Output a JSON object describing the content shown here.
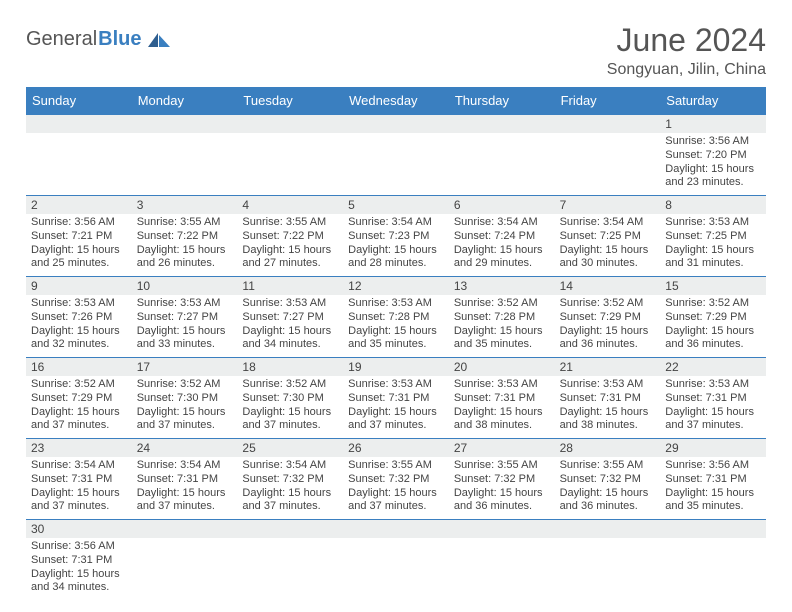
{
  "brand": {
    "a": "General",
    "b": "Blue"
  },
  "title": "June 2024",
  "location": "Songyuan, Jilin, China",
  "colors": {
    "header_bg": "#3a7fc0",
    "header_text": "#ffffff",
    "daynum_bg": "#eceeee",
    "rule": "#3a7fc0",
    "text": "#444444",
    "page_bg": "#ffffff"
  },
  "day_names": [
    "Sunday",
    "Monday",
    "Tuesday",
    "Wednesday",
    "Thursday",
    "Friday",
    "Saturday"
  ],
  "weeks": [
    {
      "nums": [
        "",
        "",
        "",
        "",
        "",
        "",
        "1"
      ],
      "cells": [
        null,
        null,
        null,
        null,
        null,
        null,
        {
          "sunrise": "3:56 AM",
          "sunset": "7:20 PM",
          "daylight": "15 hours and 23 minutes."
        }
      ]
    },
    {
      "nums": [
        "2",
        "3",
        "4",
        "5",
        "6",
        "7",
        "8"
      ],
      "cells": [
        {
          "sunrise": "3:56 AM",
          "sunset": "7:21 PM",
          "daylight": "15 hours and 25 minutes."
        },
        {
          "sunrise": "3:55 AM",
          "sunset": "7:22 PM",
          "daylight": "15 hours and 26 minutes."
        },
        {
          "sunrise": "3:55 AM",
          "sunset": "7:22 PM",
          "daylight": "15 hours and 27 minutes."
        },
        {
          "sunrise": "3:54 AM",
          "sunset": "7:23 PM",
          "daylight": "15 hours and 28 minutes."
        },
        {
          "sunrise": "3:54 AM",
          "sunset": "7:24 PM",
          "daylight": "15 hours and 29 minutes."
        },
        {
          "sunrise": "3:54 AM",
          "sunset": "7:25 PM",
          "daylight": "15 hours and 30 minutes."
        },
        {
          "sunrise": "3:53 AM",
          "sunset": "7:25 PM",
          "daylight": "15 hours and 31 minutes."
        }
      ]
    },
    {
      "nums": [
        "9",
        "10",
        "11",
        "12",
        "13",
        "14",
        "15"
      ],
      "cells": [
        {
          "sunrise": "3:53 AM",
          "sunset": "7:26 PM",
          "daylight": "15 hours and 32 minutes."
        },
        {
          "sunrise": "3:53 AM",
          "sunset": "7:27 PM",
          "daylight": "15 hours and 33 minutes."
        },
        {
          "sunrise": "3:53 AM",
          "sunset": "7:27 PM",
          "daylight": "15 hours and 34 minutes."
        },
        {
          "sunrise": "3:53 AM",
          "sunset": "7:28 PM",
          "daylight": "15 hours and 35 minutes."
        },
        {
          "sunrise": "3:52 AM",
          "sunset": "7:28 PM",
          "daylight": "15 hours and 35 minutes."
        },
        {
          "sunrise": "3:52 AM",
          "sunset": "7:29 PM",
          "daylight": "15 hours and 36 minutes."
        },
        {
          "sunrise": "3:52 AM",
          "sunset": "7:29 PM",
          "daylight": "15 hours and 36 minutes."
        }
      ]
    },
    {
      "nums": [
        "16",
        "17",
        "18",
        "19",
        "20",
        "21",
        "22"
      ],
      "cells": [
        {
          "sunrise": "3:52 AM",
          "sunset": "7:29 PM",
          "daylight": "15 hours and 37 minutes."
        },
        {
          "sunrise": "3:52 AM",
          "sunset": "7:30 PM",
          "daylight": "15 hours and 37 minutes."
        },
        {
          "sunrise": "3:52 AM",
          "sunset": "7:30 PM",
          "daylight": "15 hours and 37 minutes."
        },
        {
          "sunrise": "3:53 AM",
          "sunset": "7:31 PM",
          "daylight": "15 hours and 37 minutes."
        },
        {
          "sunrise": "3:53 AM",
          "sunset": "7:31 PM",
          "daylight": "15 hours and 38 minutes."
        },
        {
          "sunrise": "3:53 AM",
          "sunset": "7:31 PM",
          "daylight": "15 hours and 38 minutes."
        },
        {
          "sunrise": "3:53 AM",
          "sunset": "7:31 PM",
          "daylight": "15 hours and 37 minutes."
        }
      ]
    },
    {
      "nums": [
        "23",
        "24",
        "25",
        "26",
        "27",
        "28",
        "29"
      ],
      "cells": [
        {
          "sunrise": "3:54 AM",
          "sunset": "7:31 PM",
          "daylight": "15 hours and 37 minutes."
        },
        {
          "sunrise": "3:54 AM",
          "sunset": "7:31 PM",
          "daylight": "15 hours and 37 minutes."
        },
        {
          "sunrise": "3:54 AM",
          "sunset": "7:32 PM",
          "daylight": "15 hours and 37 minutes."
        },
        {
          "sunrise": "3:55 AM",
          "sunset": "7:32 PM",
          "daylight": "15 hours and 37 minutes."
        },
        {
          "sunrise": "3:55 AM",
          "sunset": "7:32 PM",
          "daylight": "15 hours and 36 minutes."
        },
        {
          "sunrise": "3:55 AM",
          "sunset": "7:32 PM",
          "daylight": "15 hours and 36 minutes."
        },
        {
          "sunrise": "3:56 AM",
          "sunset": "7:31 PM",
          "daylight": "15 hours and 35 minutes."
        }
      ]
    },
    {
      "nums": [
        "30",
        "",
        "",
        "",
        "",
        "",
        ""
      ],
      "cells": [
        {
          "sunrise": "3:56 AM",
          "sunset": "7:31 PM",
          "daylight": "15 hours and 34 minutes."
        },
        null,
        null,
        null,
        null,
        null,
        null
      ]
    }
  ],
  "labels": {
    "sunrise": "Sunrise:",
    "sunset": "Sunset:",
    "daylight": "Daylight:"
  }
}
